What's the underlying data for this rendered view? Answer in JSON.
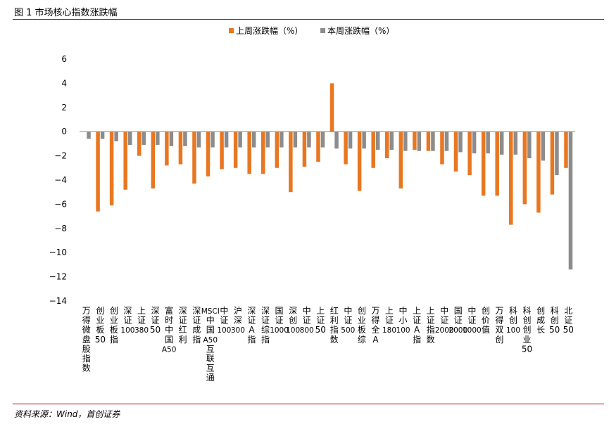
{
  "figure": {
    "title": "图 1 市场核心指数涨跌幅",
    "source": "资料来源：Wind，首创证券"
  },
  "colors": {
    "series_last_week": "#E87722",
    "series_this_week": "#8C8C8C",
    "rule": "#C00000"
  },
  "chart_data": {
    "type": "bar",
    "categories": [
      "万得微盘股指数",
      "创业板50",
      "创业板指",
      "深证100",
      "上证380",
      "深证50",
      "富时中国A50",
      "深证红利",
      "深证成指",
      "MSCI中国A50互联互通",
      "中证100",
      "沪深300",
      "深证A指",
      "深证综指",
      "国证1000",
      "深创100",
      "中证800",
      "上证50",
      "红利指数",
      "中证500",
      "创业板综",
      "万得全A",
      "上证180",
      "中小100",
      "上证A指",
      "上证指数",
      "中证2000",
      "国证2000",
      "中证1000",
      "创价值",
      "万得双创",
      "科创100",
      "科创创业50",
      "创成长",
      "科创50",
      "北证50"
    ],
    "series": [
      {
        "name": "上周涨跌幅（%）",
        "values": [
          0,
          -6.6,
          -6.1,
          -4.8,
          -2.0,
          -4.7,
          -2.8,
          -2.7,
          -4.3,
          -3.7,
          -3.1,
          -3.0,
          -3.5,
          -3.5,
          -3.0,
          -5.0,
          -2.9,
          -2.5,
          4.0,
          -2.7,
          -4.9,
          -3.0,
          -2.2,
          -4.7,
          -1.5,
          -1.6,
          -2.7,
          -3.3,
          -3.6,
          -5.3,
          -5.3,
          -7.7,
          -6.0,
          -6.7,
          -5.2,
          -3.0
        ]
      },
      {
        "name": "本周涨跌幅（%）",
        "values": [
          -0.6,
          -0.6,
          -0.8,
          -1.1,
          -1.1,
          -1.1,
          -1.2,
          -1.2,
          -1.3,
          -1.3,
          -1.3,
          -1.3,
          -1.3,
          -1.3,
          -1.3,
          -1.3,
          -1.3,
          -1.3,
          -1.4,
          -1.4,
          -1.4,
          -1.5,
          -1.5,
          -1.6,
          -1.6,
          -1.6,
          -1.6,
          -1.7,
          -1.8,
          -1.8,
          -1.9,
          -1.9,
          -2.2,
          -2.4,
          -3.6,
          -11.4
        ]
      }
    ],
    "ylim": [
      -14,
      6
    ],
    "yticks": [
      6,
      4,
      2,
      0,
      -2,
      -4,
      -6,
      -8,
      -10,
      -12,
      -14
    ],
    "grid": false,
    "legend_position": "top-center"
  }
}
